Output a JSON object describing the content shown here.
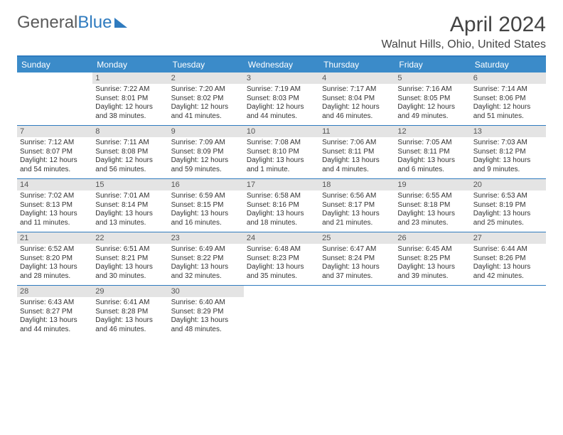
{
  "brand": {
    "part1": "General",
    "part2": "Blue"
  },
  "title": "April 2024",
  "location": "Walnut Hills, Ohio, United States",
  "colors": {
    "header_bg": "#3b8bc9",
    "rule": "#2f7bbf",
    "daynum_bg": "#e4e4e4",
    "text": "#333333"
  },
  "weekdays": [
    "Sunday",
    "Monday",
    "Tuesday",
    "Wednesday",
    "Thursday",
    "Friday",
    "Saturday"
  ],
  "weeks": [
    [
      null,
      {
        "n": "1",
        "sr": "Sunrise: 7:22 AM",
        "ss": "Sunset: 8:01 PM",
        "d1": "Daylight: 12 hours",
        "d2": "and 38 minutes."
      },
      {
        "n": "2",
        "sr": "Sunrise: 7:20 AM",
        "ss": "Sunset: 8:02 PM",
        "d1": "Daylight: 12 hours",
        "d2": "and 41 minutes."
      },
      {
        "n": "3",
        "sr": "Sunrise: 7:19 AM",
        "ss": "Sunset: 8:03 PM",
        "d1": "Daylight: 12 hours",
        "d2": "and 44 minutes."
      },
      {
        "n": "4",
        "sr": "Sunrise: 7:17 AM",
        "ss": "Sunset: 8:04 PM",
        "d1": "Daylight: 12 hours",
        "d2": "and 46 minutes."
      },
      {
        "n": "5",
        "sr": "Sunrise: 7:16 AM",
        "ss": "Sunset: 8:05 PM",
        "d1": "Daylight: 12 hours",
        "d2": "and 49 minutes."
      },
      {
        "n": "6",
        "sr": "Sunrise: 7:14 AM",
        "ss": "Sunset: 8:06 PM",
        "d1": "Daylight: 12 hours",
        "d2": "and 51 minutes."
      }
    ],
    [
      {
        "n": "7",
        "sr": "Sunrise: 7:12 AM",
        "ss": "Sunset: 8:07 PM",
        "d1": "Daylight: 12 hours",
        "d2": "and 54 minutes."
      },
      {
        "n": "8",
        "sr": "Sunrise: 7:11 AM",
        "ss": "Sunset: 8:08 PM",
        "d1": "Daylight: 12 hours",
        "d2": "and 56 minutes."
      },
      {
        "n": "9",
        "sr": "Sunrise: 7:09 AM",
        "ss": "Sunset: 8:09 PM",
        "d1": "Daylight: 12 hours",
        "d2": "and 59 minutes."
      },
      {
        "n": "10",
        "sr": "Sunrise: 7:08 AM",
        "ss": "Sunset: 8:10 PM",
        "d1": "Daylight: 13 hours",
        "d2": "and 1 minute."
      },
      {
        "n": "11",
        "sr": "Sunrise: 7:06 AM",
        "ss": "Sunset: 8:11 PM",
        "d1": "Daylight: 13 hours",
        "d2": "and 4 minutes."
      },
      {
        "n": "12",
        "sr": "Sunrise: 7:05 AM",
        "ss": "Sunset: 8:11 PM",
        "d1": "Daylight: 13 hours",
        "d2": "and 6 minutes."
      },
      {
        "n": "13",
        "sr": "Sunrise: 7:03 AM",
        "ss": "Sunset: 8:12 PM",
        "d1": "Daylight: 13 hours",
        "d2": "and 9 minutes."
      }
    ],
    [
      {
        "n": "14",
        "sr": "Sunrise: 7:02 AM",
        "ss": "Sunset: 8:13 PM",
        "d1": "Daylight: 13 hours",
        "d2": "and 11 minutes."
      },
      {
        "n": "15",
        "sr": "Sunrise: 7:01 AM",
        "ss": "Sunset: 8:14 PM",
        "d1": "Daylight: 13 hours",
        "d2": "and 13 minutes."
      },
      {
        "n": "16",
        "sr": "Sunrise: 6:59 AM",
        "ss": "Sunset: 8:15 PM",
        "d1": "Daylight: 13 hours",
        "d2": "and 16 minutes."
      },
      {
        "n": "17",
        "sr": "Sunrise: 6:58 AM",
        "ss": "Sunset: 8:16 PM",
        "d1": "Daylight: 13 hours",
        "d2": "and 18 minutes."
      },
      {
        "n": "18",
        "sr": "Sunrise: 6:56 AM",
        "ss": "Sunset: 8:17 PM",
        "d1": "Daylight: 13 hours",
        "d2": "and 21 minutes."
      },
      {
        "n": "19",
        "sr": "Sunrise: 6:55 AM",
        "ss": "Sunset: 8:18 PM",
        "d1": "Daylight: 13 hours",
        "d2": "and 23 minutes."
      },
      {
        "n": "20",
        "sr": "Sunrise: 6:53 AM",
        "ss": "Sunset: 8:19 PM",
        "d1": "Daylight: 13 hours",
        "d2": "and 25 minutes."
      }
    ],
    [
      {
        "n": "21",
        "sr": "Sunrise: 6:52 AM",
        "ss": "Sunset: 8:20 PM",
        "d1": "Daylight: 13 hours",
        "d2": "and 28 minutes."
      },
      {
        "n": "22",
        "sr": "Sunrise: 6:51 AM",
        "ss": "Sunset: 8:21 PM",
        "d1": "Daylight: 13 hours",
        "d2": "and 30 minutes."
      },
      {
        "n": "23",
        "sr": "Sunrise: 6:49 AM",
        "ss": "Sunset: 8:22 PM",
        "d1": "Daylight: 13 hours",
        "d2": "and 32 minutes."
      },
      {
        "n": "24",
        "sr": "Sunrise: 6:48 AM",
        "ss": "Sunset: 8:23 PM",
        "d1": "Daylight: 13 hours",
        "d2": "and 35 minutes."
      },
      {
        "n": "25",
        "sr": "Sunrise: 6:47 AM",
        "ss": "Sunset: 8:24 PM",
        "d1": "Daylight: 13 hours",
        "d2": "and 37 minutes."
      },
      {
        "n": "26",
        "sr": "Sunrise: 6:45 AM",
        "ss": "Sunset: 8:25 PM",
        "d1": "Daylight: 13 hours",
        "d2": "and 39 minutes."
      },
      {
        "n": "27",
        "sr": "Sunrise: 6:44 AM",
        "ss": "Sunset: 8:26 PM",
        "d1": "Daylight: 13 hours",
        "d2": "and 42 minutes."
      }
    ],
    [
      {
        "n": "28",
        "sr": "Sunrise: 6:43 AM",
        "ss": "Sunset: 8:27 PM",
        "d1": "Daylight: 13 hours",
        "d2": "and 44 minutes."
      },
      {
        "n": "29",
        "sr": "Sunrise: 6:41 AM",
        "ss": "Sunset: 8:28 PM",
        "d1": "Daylight: 13 hours",
        "d2": "and 46 minutes."
      },
      {
        "n": "30",
        "sr": "Sunrise: 6:40 AM",
        "ss": "Sunset: 8:29 PM",
        "d1": "Daylight: 13 hours",
        "d2": "and 48 minutes."
      },
      null,
      null,
      null,
      null
    ]
  ]
}
